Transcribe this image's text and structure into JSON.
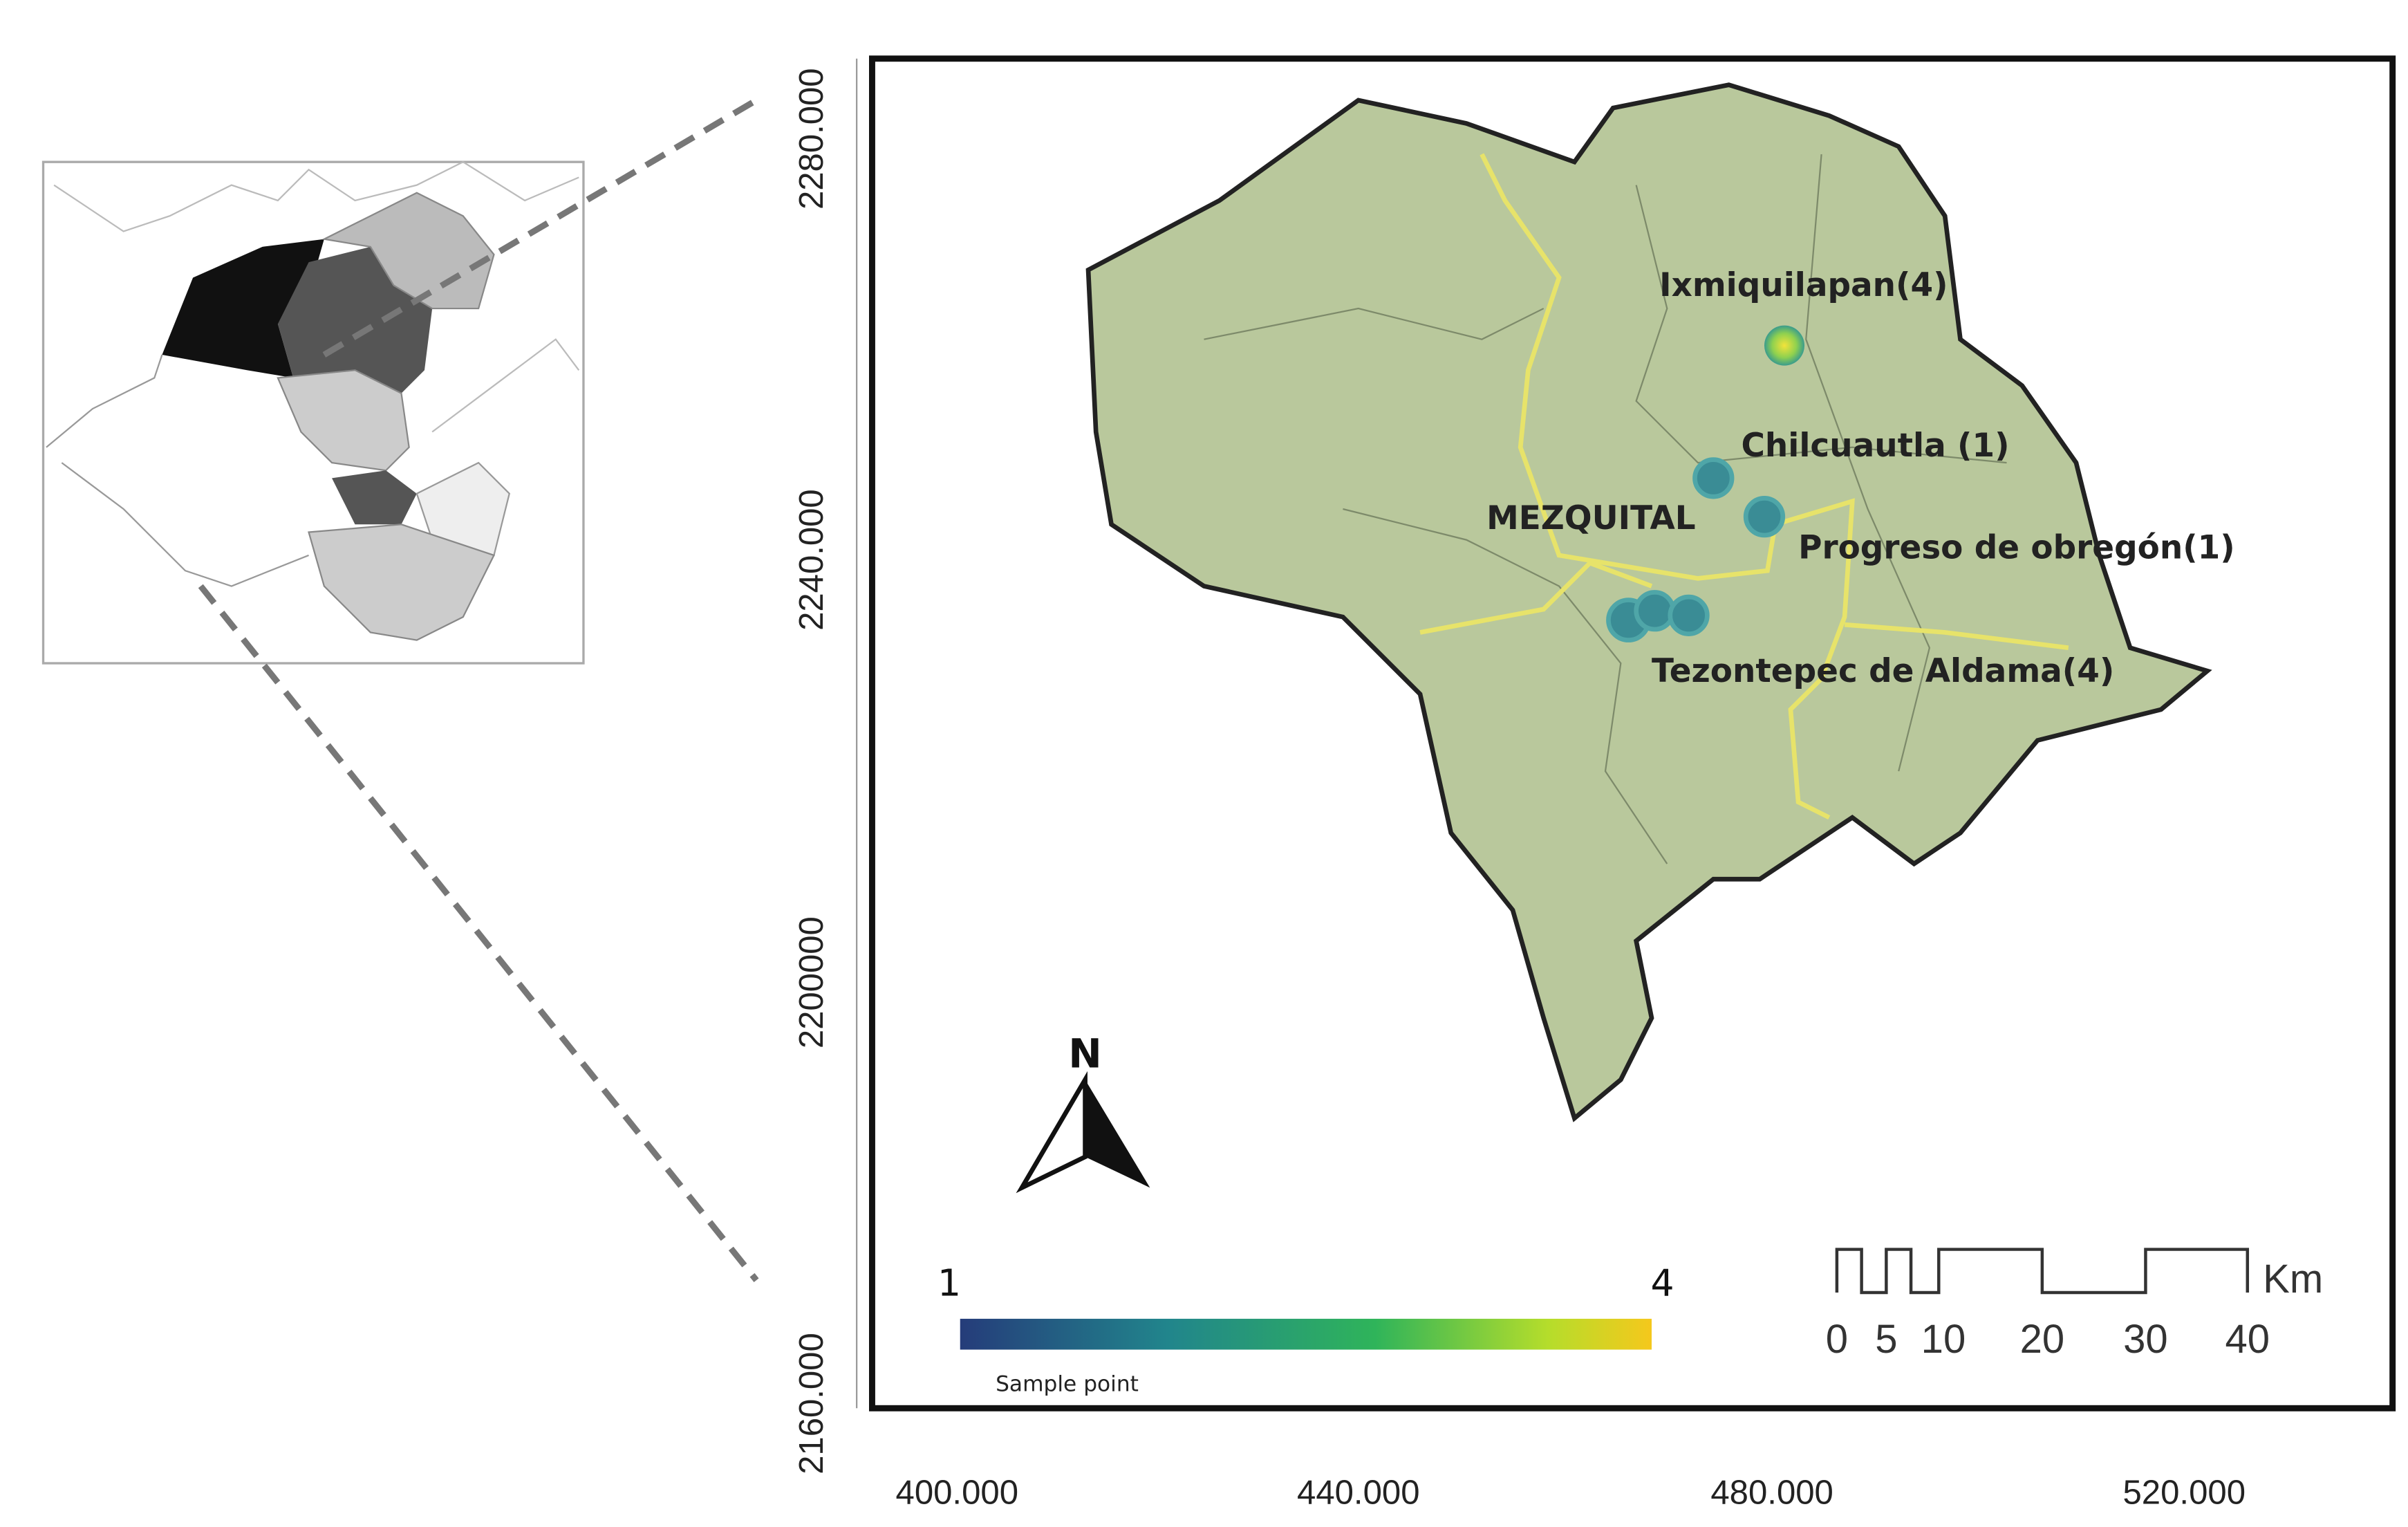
{
  "axes": {
    "y": [
      "2280.000",
      "2240.000",
      "2200000",
      "2160.000"
    ],
    "x": [
      "400.000",
      "440.000",
      "480.000",
      "520.000"
    ]
  },
  "places": [
    "Ixmiquilapan(4)",
    "Chilcuautla  (1)",
    "MEZQUITAL",
    "Progreso de obregón(1)",
    "Tezontepec de Aldama(4)"
  ],
  "legend": {
    "min": "1",
    "max": "4",
    "caption": "Sample point"
  },
  "north": "N",
  "scale": {
    "labels": [
      "0",
      "5",
      "10",
      "20",
      "30",
      "40"
    ],
    "unit": "Km"
  }
}
